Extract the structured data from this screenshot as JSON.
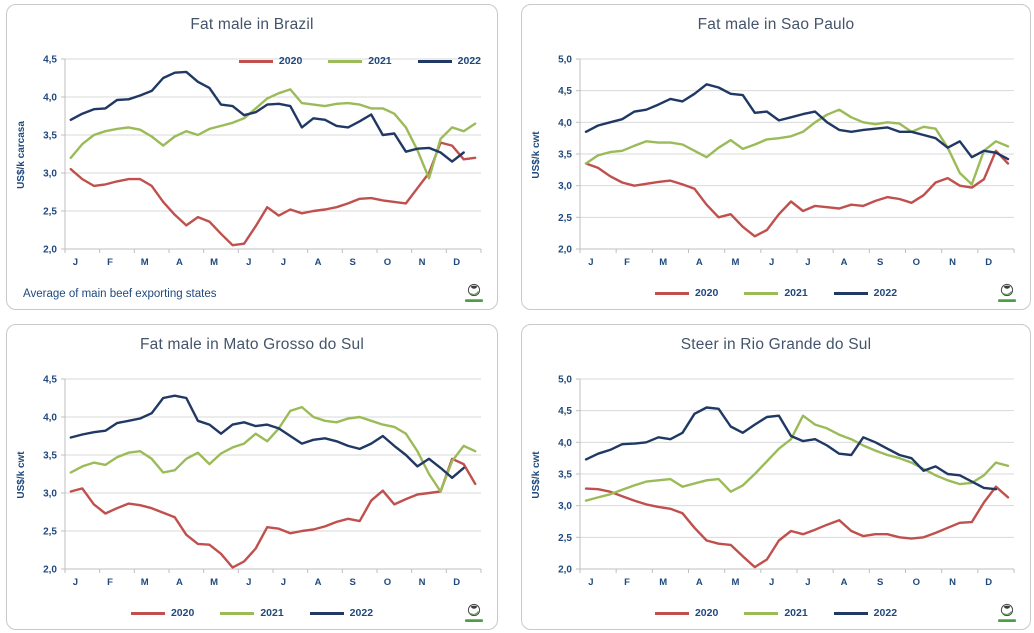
{
  "palette": {
    "red": "#C0504D",
    "green": "#9BBB59",
    "navy": "#1F3864",
    "axis_text": "#1F497D",
    "title_text": "#44546A",
    "gridline": "#D9D9D9",
    "axis_line": "#BFBFBF",
    "panel_border": "#C9C9C9",
    "logo_green": "#4F9E45"
  },
  "chart_data": [
    {
      "type": "line",
      "id": "brazil",
      "title": "Fat male in Brazil",
      "y_axis_label": "US$/k carcasa",
      "footnote": "Average  of main beef exporting states",
      "y_min": 2.0,
      "y_max": 4.5,
      "y_step": 0.5,
      "y_tick_labels": [
        "4,5",
        "4,0",
        "3,5",
        "3,0",
        "2,5",
        "2,0"
      ],
      "x_labels": [
        "J",
        "F",
        "M",
        "A",
        "M",
        "J",
        "J",
        "A",
        "S",
        "O",
        "N",
        "D"
      ],
      "grid": true,
      "legend_position": "top-right-inside",
      "series": [
        {
          "name": "2020",
          "color_key": "red",
          "values": [
            3.05,
            2.92,
            2.83,
            2.85,
            2.89,
            2.92,
            2.92,
            2.83,
            2.62,
            2.45,
            2.31,
            2.42,
            2.36,
            2.2,
            2.05,
            2.07,
            2.3,
            2.55,
            2.44,
            2.52,
            2.47,
            2.5,
            2.52,
            2.55,
            2.6,
            2.66,
            2.67,
            2.64,
            2.62,
            2.6,
            2.8,
            3.0,
            3.4,
            3.36,
            3.18,
            3.2
          ]
        },
        {
          "name": "2021",
          "color_key": "green",
          "values": [
            3.2,
            3.38,
            3.5,
            3.55,
            3.58,
            3.6,
            3.57,
            3.48,
            3.36,
            3.48,
            3.55,
            3.5,
            3.58,
            3.62,
            3.66,
            3.72,
            3.85,
            3.98,
            4.05,
            4.1,
            3.92,
            3.9,
            3.88,
            3.91,
            3.92,
            3.9,
            3.85,
            3.85,
            3.78,
            3.6,
            3.3,
            2.93,
            3.45,
            3.6,
            3.55,
            3.65
          ]
        },
        {
          "name": "2022",
          "color_key": "navy",
          "values": [
            3.7,
            3.78,
            3.84,
            3.85,
            3.96,
            3.97,
            4.02,
            4.08,
            4.25,
            4.32,
            4.33,
            4.2,
            4.12,
            3.9,
            3.88,
            3.76,
            3.8,
            3.9,
            3.91,
            3.88,
            3.6,
            3.72,
            3.7,
            3.62,
            3.6,
            3.68,
            3.77,
            3.5,
            3.52,
            3.28,
            3.32,
            3.33,
            3.27,
            3.15,
            3.27
          ]
        }
      ]
    },
    {
      "type": "line",
      "id": "sao-paulo",
      "title": "Fat male in Sao Paulo",
      "y_axis_label": "US$/k cwt",
      "y_min": 2.0,
      "y_max": 5.0,
      "y_step": 0.5,
      "y_tick_labels": [
        "5,0",
        "4,5",
        "4,0",
        "3,5",
        "3,0",
        "2,5",
        "2,0"
      ],
      "x_labels": [
        "J",
        "F",
        "M",
        "A",
        "M",
        "J",
        "J",
        "A",
        "S",
        "O",
        "N",
        "D"
      ],
      "grid": true,
      "legend_position": "bottom",
      "series": [
        {
          "name": "2020",
          "color_key": "red",
          "values": [
            3.35,
            3.28,
            3.15,
            3.05,
            3.0,
            3.03,
            3.06,
            3.08,
            3.02,
            2.95,
            2.7,
            2.5,
            2.55,
            2.35,
            2.2,
            2.3,
            2.55,
            2.75,
            2.6,
            2.68,
            2.66,
            2.64,
            2.7,
            2.68,
            2.76,
            2.82,
            2.79,
            2.73,
            2.85,
            3.05,
            3.12,
            3.0,
            2.97,
            3.1,
            3.55,
            3.35
          ]
        },
        {
          "name": "2021",
          "color_key": "green",
          "values": [
            3.35,
            3.48,
            3.53,
            3.55,
            3.63,
            3.7,
            3.68,
            3.68,
            3.65,
            3.55,
            3.45,
            3.6,
            3.72,
            3.58,
            3.65,
            3.73,
            3.75,
            3.78,
            3.85,
            4.0,
            4.12,
            4.2,
            4.08,
            4.0,
            3.97,
            4.0,
            3.98,
            3.85,
            3.93,
            3.9,
            3.6,
            3.2,
            3.02,
            3.55,
            3.7,
            3.62
          ]
        },
        {
          "name": "2022",
          "color_key": "navy",
          "values": [
            3.85,
            3.95,
            4.0,
            4.05,
            4.17,
            4.2,
            4.28,
            4.37,
            4.33,
            4.45,
            4.6,
            4.55,
            4.45,
            4.43,
            4.15,
            4.17,
            4.03,
            4.08,
            4.13,
            4.17,
            4.0,
            3.88,
            3.85,
            3.88,
            3.9,
            3.92,
            3.85,
            3.85,
            3.8,
            3.75,
            3.6,
            3.7,
            3.45,
            3.55,
            3.52,
            3.42
          ]
        }
      ]
    },
    {
      "type": "line",
      "id": "mato-grosso-do-sul",
      "title": "Fat male in Mato Grosso do Sul",
      "y_axis_label": "US$/k cwt",
      "y_min": 2.0,
      "y_max": 4.5,
      "y_step": 0.5,
      "y_tick_labels": [
        "4,5",
        "4,0",
        "3,5",
        "3,0",
        "2,5",
        "2,0"
      ],
      "x_labels": [
        "J",
        "F",
        "M",
        "A",
        "M",
        "J",
        "J",
        "A",
        "S",
        "O",
        "N",
        "D"
      ],
      "grid": true,
      "legend_position": "bottom",
      "series": [
        {
          "name": "2020",
          "color_key": "red",
          "values": [
            3.02,
            3.06,
            2.85,
            2.73,
            2.8,
            2.86,
            2.84,
            2.8,
            2.74,
            2.68,
            2.45,
            2.33,
            2.32,
            2.2,
            2.02,
            2.1,
            2.27,
            2.55,
            2.53,
            2.47,
            2.5,
            2.52,
            2.56,
            2.62,
            2.66,
            2.63,
            2.9,
            3.03,
            2.85,
            2.92,
            2.98,
            3.0,
            3.02,
            3.45,
            3.38,
            3.12
          ]
        },
        {
          "name": "2021",
          "color_key": "green",
          "values": [
            3.27,
            3.35,
            3.4,
            3.37,
            3.47,
            3.53,
            3.55,
            3.45,
            3.27,
            3.3,
            3.45,
            3.53,
            3.38,
            3.52,
            3.6,
            3.65,
            3.78,
            3.68,
            3.85,
            4.08,
            4.13,
            4.0,
            3.95,
            3.93,
            3.98,
            4.0,
            3.95,
            3.9,
            3.87,
            3.78,
            3.55,
            3.25,
            3.02,
            3.42,
            3.62,
            3.55
          ]
        },
        {
          "name": "2022",
          "color_key": "navy",
          "values": [
            3.73,
            3.77,
            3.8,
            3.82,
            3.92,
            3.95,
            3.98,
            4.05,
            4.25,
            4.28,
            4.25,
            3.95,
            3.9,
            3.78,
            3.9,
            3.93,
            3.88,
            3.9,
            3.85,
            3.75,
            3.65,
            3.7,
            3.72,
            3.68,
            3.62,
            3.58,
            3.65,
            3.75,
            3.62,
            3.5,
            3.35,
            3.45,
            3.33,
            3.2,
            3.33
          ]
        }
      ]
    },
    {
      "type": "line",
      "id": "rio-grande-do-sul",
      "title": "Steer  in Rio Grande do Sul",
      "y_axis_label": "US$/k cwt",
      "y_min": 2.0,
      "y_max": 5.0,
      "y_step": 0.5,
      "y_tick_labels": [
        "5,0",
        "4,5",
        "4,0",
        "3,5",
        "3,0",
        "2,5",
        "2,0"
      ],
      "x_labels": [
        "J",
        "F",
        "M",
        "A",
        "M",
        "J",
        "J",
        "A",
        "S",
        "O",
        "N",
        "D"
      ],
      "grid": true,
      "legend_position": "bottom",
      "series": [
        {
          "name": "2020",
          "color_key": "red",
          "values": [
            3.27,
            3.26,
            3.22,
            3.15,
            3.08,
            3.02,
            2.98,
            2.95,
            2.88,
            2.65,
            2.45,
            2.4,
            2.38,
            2.2,
            2.03,
            2.15,
            2.45,
            2.6,
            2.55,
            2.62,
            2.7,
            2.77,
            2.6,
            2.52,
            2.55,
            2.55,
            2.5,
            2.48,
            2.5,
            2.57,
            2.65,
            2.73,
            2.74,
            3.05,
            3.3,
            3.13
          ]
        },
        {
          "name": "2021",
          "color_key": "green",
          "values": [
            3.08,
            3.13,
            3.18,
            3.25,
            3.32,
            3.38,
            3.4,
            3.42,
            3.3,
            3.35,
            3.4,
            3.42,
            3.22,
            3.32,
            3.5,
            3.7,
            3.9,
            4.05,
            4.42,
            4.28,
            4.22,
            4.12,
            4.05,
            3.95,
            3.87,
            3.8,
            3.75,
            3.68,
            3.58,
            3.48,
            3.4,
            3.34,
            3.36,
            3.48,
            3.68,
            3.63
          ]
        },
        {
          "name": "2022",
          "color_key": "navy",
          "values": [
            3.73,
            3.82,
            3.88,
            3.97,
            3.98,
            4.0,
            4.08,
            4.05,
            4.15,
            4.45,
            4.55,
            4.53,
            4.25,
            4.15,
            4.28,
            4.4,
            4.42,
            4.1,
            4.02,
            4.05,
            3.95,
            3.82,
            3.8,
            4.08,
            4.0,
            3.9,
            3.8,
            3.75,
            3.55,
            3.62,
            3.5,
            3.48,
            3.38,
            3.28,
            3.26
          ]
        }
      ]
    }
  ]
}
